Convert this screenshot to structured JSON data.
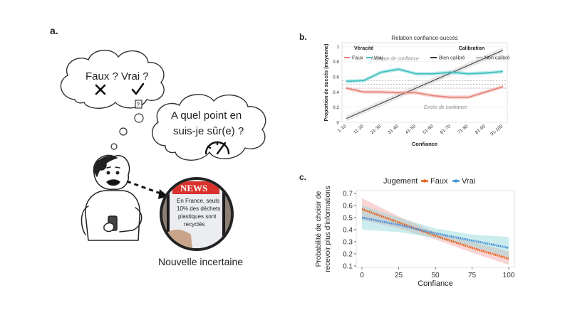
{
  "panels": {
    "a": {
      "label": "a.",
      "bubble1_text": "Faux ? Vrai ?",
      "bubble2_line1": "A quel point en",
      "bubble2_line2": "suis-je sûr(e) ?",
      "phone_banner": "NEWS",
      "phone_text": [
        "En France, seuls",
        "10% des déchets",
        "plastiques sont",
        "recyclés"
      ],
      "caption": "Nouvelle incertaine",
      "colors": {
        "news_red": "#d9312b",
        "ink": "#222222"
      }
    },
    "b": {
      "label": "b."
    },
    "c": {
      "label": "c."
    }
  },
  "chart_data": [
    {
      "id": "b",
      "type": "line",
      "title": "Relation confiance-succès",
      "xlabel": "Confiance",
      "ylabel": "Proportion de succès (moyenne)",
      "categories": [
        "1-10",
        "11-20",
        "21-30",
        "31-40",
        "41-50",
        "51-60",
        "61-70",
        "71-80",
        "81-90",
        "91-100"
      ],
      "ylim": [
        0,
        1.05
      ],
      "yticks": [
        0,
        0.2,
        0.4,
        0.6,
        0.8,
        1
      ],
      "ytick_labels": [
        "0",
        "0.2",
        "0.4",
        "0.6",
        "0.8",
        "1"
      ],
      "legend_groups": [
        {
          "title": "Véracité",
          "entries": [
            {
              "name": "Faux",
              "color": "#e8857b"
            },
            {
              "name": "Vrai",
              "color": "#3fbfbf"
            }
          ]
        },
        {
          "title": "Calibration",
          "entries": [
            {
              "name": "Bien calibré",
              "color": "#333333"
            },
            {
              "name": "Non calibré",
              "color": "#bbbbbb"
            }
          ]
        }
      ],
      "series": [
        {
          "name": "Vrai",
          "color": "#3fbfbf",
          "values": [
            0.54,
            0.55,
            0.66,
            0.7,
            0.64,
            0.64,
            0.66,
            0.64,
            0.65,
            0.67
          ]
        },
        {
          "name": "Faux",
          "color": "#e8857b",
          "values": [
            0.45,
            0.4,
            0.4,
            0.39,
            0.39,
            0.35,
            0.33,
            0.33,
            0.4,
            0.47
          ]
        }
      ],
      "calibration": {
        "name": "Bien calibré",
        "color": "#333333",
        "from": [
          0,
          0.05
        ],
        "to": [
          9,
          0.95
        ]
      },
      "reference_lines": [
        {
          "name": "Non calibré",
          "y": 0.55,
          "color": "#999999"
        },
        {
          "name": "Non calibré",
          "y": 0.5,
          "color": "#999999"
        },
        {
          "name": "Non calibré",
          "y": 0.45,
          "color": "#999999"
        }
      ],
      "annotations": [
        {
          "text": "Manque de confiance",
          "x": 2.8,
          "y": 0.82
        },
        {
          "text": "Excès de confiance",
          "x": 5.7,
          "y": 0.18
        }
      ],
      "grid": true
    },
    {
      "id": "c",
      "type": "line",
      "xlabel": "Confiance",
      "ylabel_lines": [
        "Probabilité de choisir de",
        "recevoir plus d'informations"
      ],
      "legend_title": "Jugement",
      "legend_position": "top",
      "xlim": [
        0,
        100
      ],
      "ylim": [
        0.1,
        0.7
      ],
      "xticks": [
        0,
        25,
        50,
        75,
        100
      ],
      "yticks": [
        0.1,
        0.2,
        0.3,
        0.4,
        0.5,
        0.6,
        0.7
      ],
      "ytick_labels": [
        "0.1",
        "0.2",
        "0.3",
        "0.4",
        "0.5",
        "0.6",
        "0.7"
      ],
      "series": [
        {
          "name": "Faux",
          "color": "#e8601c",
          "band_color": "#f2a0a0",
          "x": [
            0,
            25,
            50,
            75,
            100
          ],
          "y": [
            0.57,
            0.46,
            0.35,
            0.25,
            0.16
          ],
          "lower": [
            0.48,
            0.41,
            0.32,
            0.21,
            0.11
          ],
          "upper": [
            0.66,
            0.51,
            0.38,
            0.3,
            0.22
          ]
        },
        {
          "name": "Vrai",
          "color": "#4a90d9",
          "band_color": "#8fd8d8",
          "x": [
            0,
            25,
            50,
            75,
            100
          ],
          "y": [
            0.5,
            0.44,
            0.37,
            0.31,
            0.25
          ],
          "lower": [
            0.4,
            0.38,
            0.33,
            0.26,
            0.17
          ],
          "upper": [
            0.6,
            0.5,
            0.41,
            0.36,
            0.34
          ]
        }
      ]
    }
  ]
}
